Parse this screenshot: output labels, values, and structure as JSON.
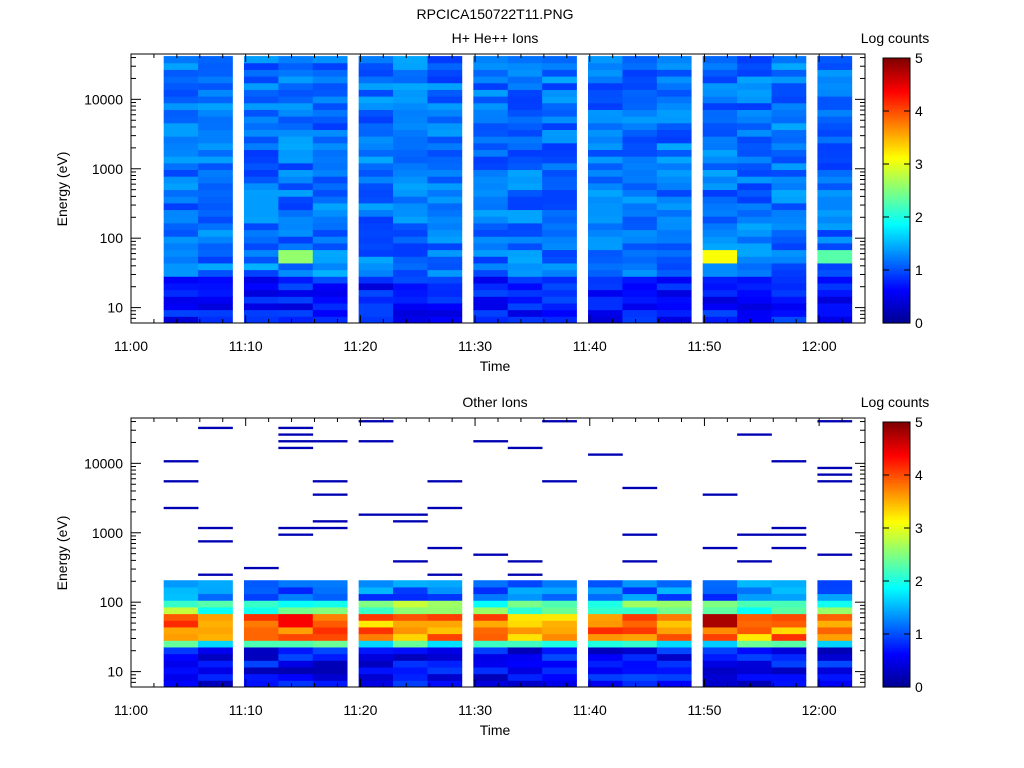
{
  "figure_title": "RPCICA150722T11.PNG",
  "colormap": [
    "#00008f",
    "#0000ff",
    "#0080ff",
    "#00ffff",
    "#80ff80",
    "#ffff00",
    "#ff8000",
    "#ff0000",
    "#800000"
  ],
  "chart_data": [
    {
      "type": "heatmap",
      "title": "H+ He++ Ions",
      "xlabel": "Time",
      "ylabel": "Energy (eV)",
      "yscale": "log",
      "xlim": [
        "11:00",
        "12:04"
      ],
      "ylim": [
        6,
        45000
      ],
      "xticks": [
        "11:00",
        "11:10",
        "11:20",
        "11:30",
        "11:40",
        "11:50",
        "12:00"
      ],
      "yticks": [
        "10",
        "100",
        "1000",
        "10000"
      ],
      "colorbar": {
        "label": "Log counts",
        "range": [
          0,
          5
        ],
        "ticks": [
          "0",
          "1",
          "2",
          "3",
          "4",
          "5"
        ]
      },
      "time_columns": [
        "11:03",
        "11:06",
        "11:10",
        "11:13",
        "11:16",
        "11:20",
        "11:23",
        "11:26",
        "11:30",
        "11:33",
        "11:36",
        "11:40",
        "11:43",
        "11:46",
        "11:50",
        "11:53",
        "11:56",
        "12:00"
      ],
      "energy_range_ev": [
        6,
        42000
      ],
      "features": [
        {
          "time": "11:13",
          "energy_ev": 50,
          "log_counts": 2.6
        },
        {
          "time": "11:50",
          "energy_ev": 50,
          "log_counts": 3.1
        },
        {
          "time": "12:00",
          "energy_ev": 50,
          "log_counts": 2.3
        }
      ]
    },
    {
      "type": "heatmap",
      "title": "Other Ions",
      "xlabel": "Time",
      "ylabel": "Energy (eV)",
      "yscale": "log",
      "xlim": [
        "11:00",
        "12:04"
      ],
      "ylim": [
        6,
        45000
      ],
      "xticks": [
        "11:00",
        "11:10",
        "11:20",
        "11:30",
        "11:40",
        "11:50",
        "12:00"
      ],
      "yticks": [
        "10",
        "100",
        "1000",
        "10000"
      ],
      "colorbar": {
        "label": "Log counts",
        "range": [
          0,
          5
        ],
        "ticks": [
          "0",
          "1",
          "2",
          "3",
          "4",
          "5"
        ]
      },
      "time_columns": [
        "11:03",
        "11:06",
        "11:10",
        "11:13",
        "11:16",
        "11:20",
        "11:23",
        "11:26",
        "11:30",
        "11:33",
        "11:36",
        "11:40",
        "11:43",
        "11:46",
        "11:50",
        "11:53",
        "11:56",
        "12:00"
      ],
      "dense_energy_range_ev": [
        6,
        210
      ],
      "peak_band": {
        "energy_ev": 42,
        "log_counts": 4.2
      },
      "features": [
        {
          "time": "11:13",
          "energy_ev": 50,
          "log_counts": 4.4
        },
        {
          "time": "11:50",
          "energy_ev": 50,
          "log_counts": 4.8
        }
      ]
    }
  ]
}
